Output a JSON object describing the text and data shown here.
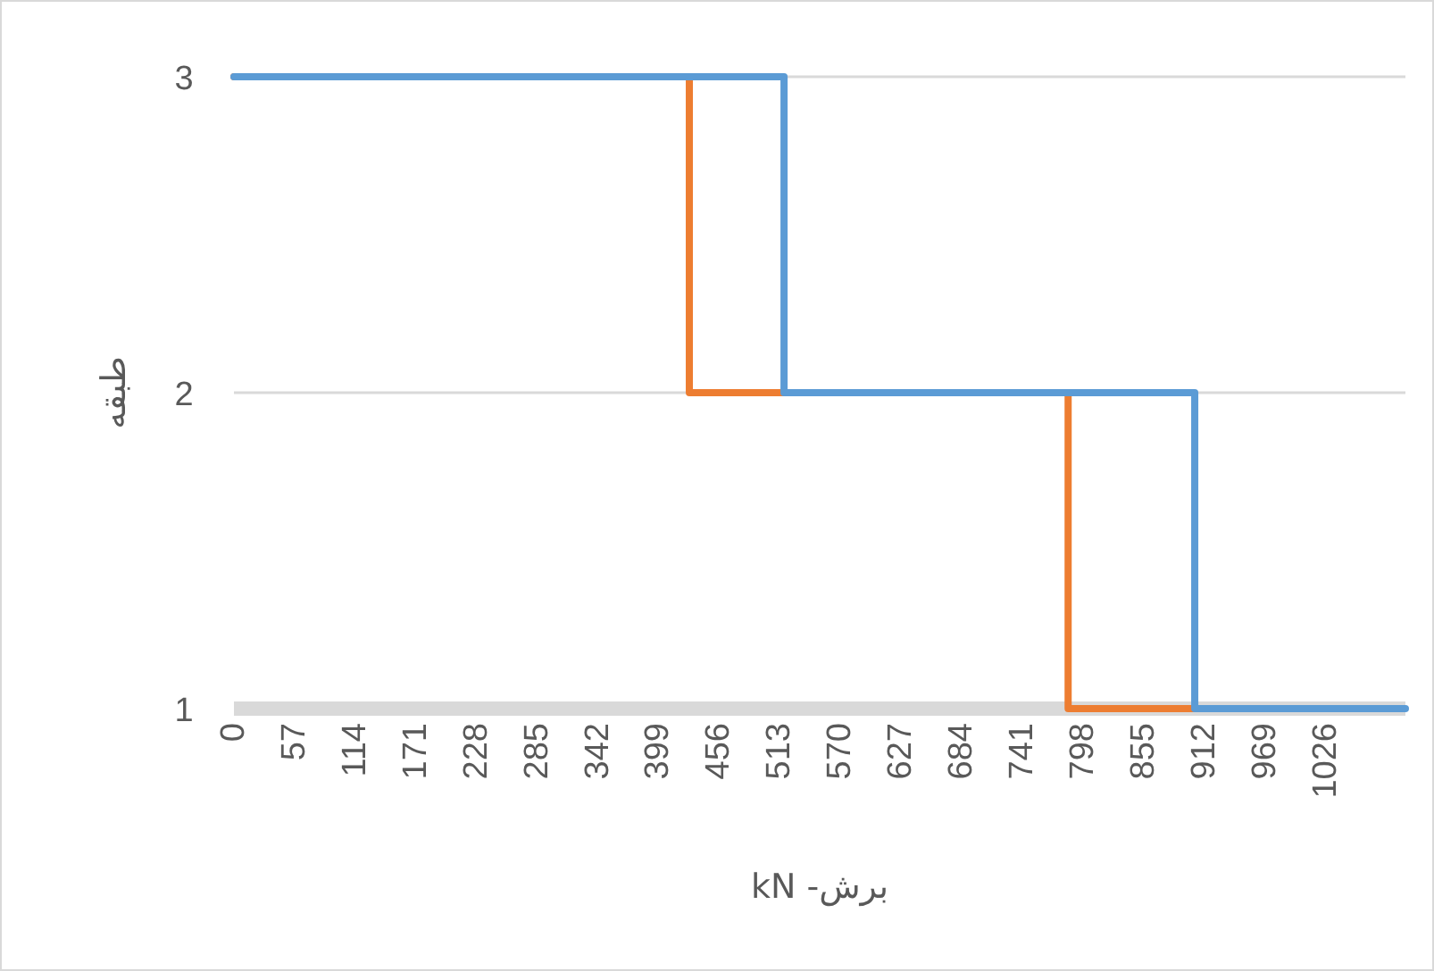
{
  "chart_data": {
    "type": "step",
    "xlabel": "برش- kN",
    "ylabel": "طبقه",
    "xlim": [
      0,
      1101
    ],
    "xticks": [
      0,
      57,
      114,
      171,
      228,
      285,
      342,
      399,
      456,
      513,
      570,
      627,
      684,
      741,
      798,
      855,
      912,
      969,
      1026
    ],
    "ylim": [
      1,
      3
    ],
    "yticks": [
      1,
      2,
      3
    ],
    "grid": "y",
    "series": [
      {
        "color": "#ed7d31",
        "x": [
          0,
          428,
          784,
          903
        ],
        "values": [
          3,
          2,
          1,
          1
        ]
      },
      {
        "color": "#5b9bd5",
        "x": [
          0,
          517,
          903,
          1101
        ],
        "values": [
          3,
          2,
          1,
          1
        ]
      }
    ]
  }
}
